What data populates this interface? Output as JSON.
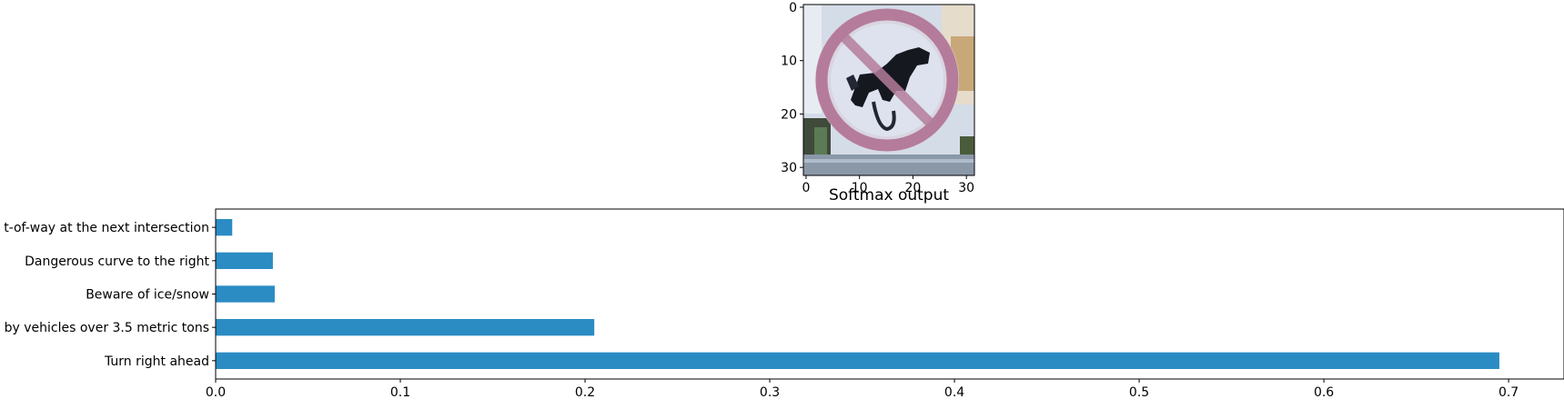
{
  "image_panel": {
    "image_description": "No-entry style traffic sign: red circle with diagonal slash over a black shape, 32x32 pixels",
    "x_ticks": [
      "0",
      "10",
      "20",
      "30"
    ],
    "y_ticks": [
      "0",
      "10",
      "20",
      "30"
    ]
  },
  "chart_data": {
    "type": "bar",
    "orientation": "horizontal",
    "title": "Softmax output",
    "xlabel": "",
    "ylabel": "",
    "categories": [
      "Turn right ahead",
      "by vehicles over 3.5 metric tons",
      "Beware of ice/snow",
      "Dangerous curve to the right",
      "t-of-way at the next intersection"
    ],
    "values": [
      0.695,
      0.205,
      0.032,
      0.031,
      0.009
    ],
    "xlim": [
      0.0,
      0.73
    ],
    "xticks": [
      "0.0",
      "0.1",
      "0.2",
      "0.3",
      "0.4",
      "0.5",
      "0.6",
      "0.7"
    ],
    "bar_color": "#2b8cc4",
    "grid": false
  }
}
